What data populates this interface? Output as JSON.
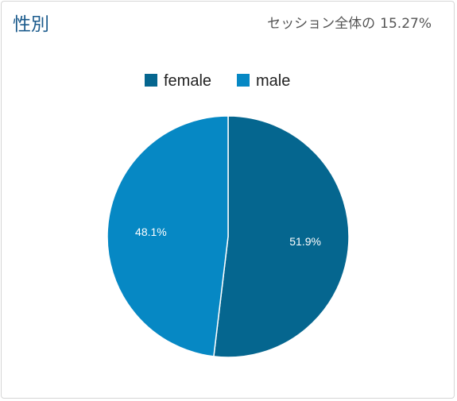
{
  "panel": {
    "title": "性別",
    "share_label": "セッション全体の",
    "share_value": "15.27%"
  },
  "chart_data": {
    "type": "pie",
    "legend_position": "top",
    "categories": [
      "female",
      "male"
    ],
    "values": [
      51.9,
      48.1
    ],
    "labels": [
      "51.9%",
      "48.1%"
    ],
    "colors": [
      "#05668f",
      "#0688c4"
    ],
    "title": ""
  }
}
